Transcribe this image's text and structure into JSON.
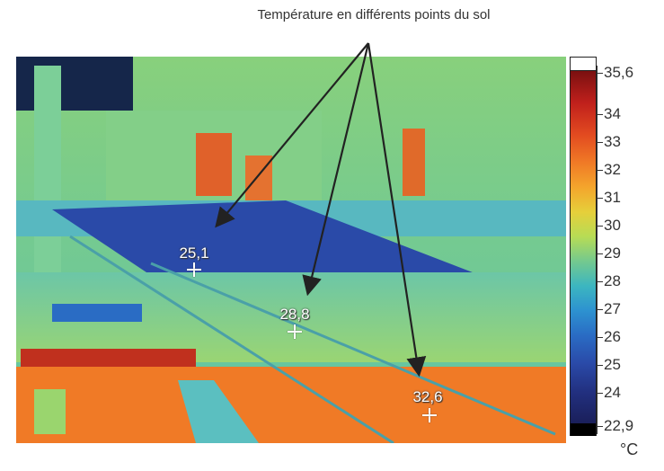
{
  "caption": "Température en différents points du sol",
  "points": [
    {
      "label": "25,1"
    },
    {
      "label": "28,8"
    },
    {
      "label": "32,6"
    }
  ],
  "scale": {
    "max_label": "35,6",
    "min_label": "22,9",
    "ticks": [
      "34",
      "33",
      "32",
      "31",
      "30",
      "29",
      "28",
      "27",
      "26",
      "25",
      "24"
    ],
    "unit": "°C"
  },
  "colors": {
    "hot": "#c0201c",
    "warm": "#f07a26",
    "mid": "#b7dc55",
    "cool": "#3cb6c0",
    "cold": "#2a4aa8",
    "arrow": "#222222"
  }
}
